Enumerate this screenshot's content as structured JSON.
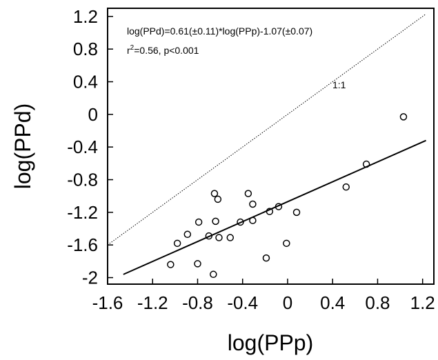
{
  "chart_data": {
    "type": "scatter",
    "title": "",
    "xlabel": "log(PPp)",
    "ylabel": "log(PPd)",
    "xlim": [
      -1.6,
      1.3
    ],
    "ylim": [
      -2.08,
      1.3
    ],
    "grid": false,
    "x_ticks": [
      -1.6,
      -1.2,
      -0.8,
      -0.4,
      0,
      0.4,
      0.8,
      1.2
    ],
    "x_tick_labels": [
      "-1.6",
      "-1.2",
      "-0.8",
      "-0.4",
      "0",
      "0.4",
      "0.8",
      "1.2"
    ],
    "y_ticks": [
      -2,
      -1.6,
      -1.2,
      -0.8,
      -0.4,
      0,
      0.4,
      0.8,
      1.2
    ],
    "y_tick_labels": [
      "-2",
      "-1.6",
      "-1.2",
      "-0.8",
      "-0.4",
      "0",
      "0.4",
      "0.8",
      "1.2"
    ],
    "series": [
      {
        "marker": "open-circle",
        "points": [
          {
            "x": -1.04,
            "y": -1.84
          },
          {
            "x": -0.98,
            "y": -1.58
          },
          {
            "x": -0.89,
            "y": -1.47
          },
          {
            "x": -0.8,
            "y": -1.83
          },
          {
            "x": -0.79,
            "y": -1.32
          },
          {
            "x": -0.7,
            "y": -1.49
          },
          {
            "x": -0.66,
            "y": -1.96
          },
          {
            "x": -0.65,
            "y": -0.97
          },
          {
            "x": -0.64,
            "y": -1.31
          },
          {
            "x": -0.62,
            "y": -1.04
          },
          {
            "x": -0.61,
            "y": -1.51
          },
          {
            "x": -0.51,
            "y": -1.51
          },
          {
            "x": -0.42,
            "y": -1.32
          },
          {
            "x": -0.35,
            "y": -0.97
          },
          {
            "x": -0.31,
            "y": -1.1
          },
          {
            "x": -0.31,
            "y": -1.3
          },
          {
            "x": -0.19,
            "y": -1.76
          },
          {
            "x": -0.16,
            "y": -1.19
          },
          {
            "x": -0.08,
            "y": -1.13
          },
          {
            "x": -0.01,
            "y": -1.58
          },
          {
            "x": 0.08,
            "y": -1.2
          },
          {
            "x": 0.52,
            "y": -0.89
          },
          {
            "x": 0.7,
            "y": -0.61
          },
          {
            "x": 1.03,
            "y": -0.03
          }
        ]
      }
    ],
    "regression_line": {
      "slope": 0.61,
      "intercept": -1.07,
      "x_range": [
        -1.46,
        1.23
      ]
    },
    "identity_line": {
      "label": "1:1",
      "x_range": [
        -1.6,
        1.23
      ]
    },
    "annotations": {
      "equation": "log(PPd)=0.61(±0.11)*log(PPp)-1.07(±0.07)",
      "r2_prefix": "r",
      "r2_sup": "2",
      "r2_rest": "=0.56, p<0.001"
    }
  }
}
